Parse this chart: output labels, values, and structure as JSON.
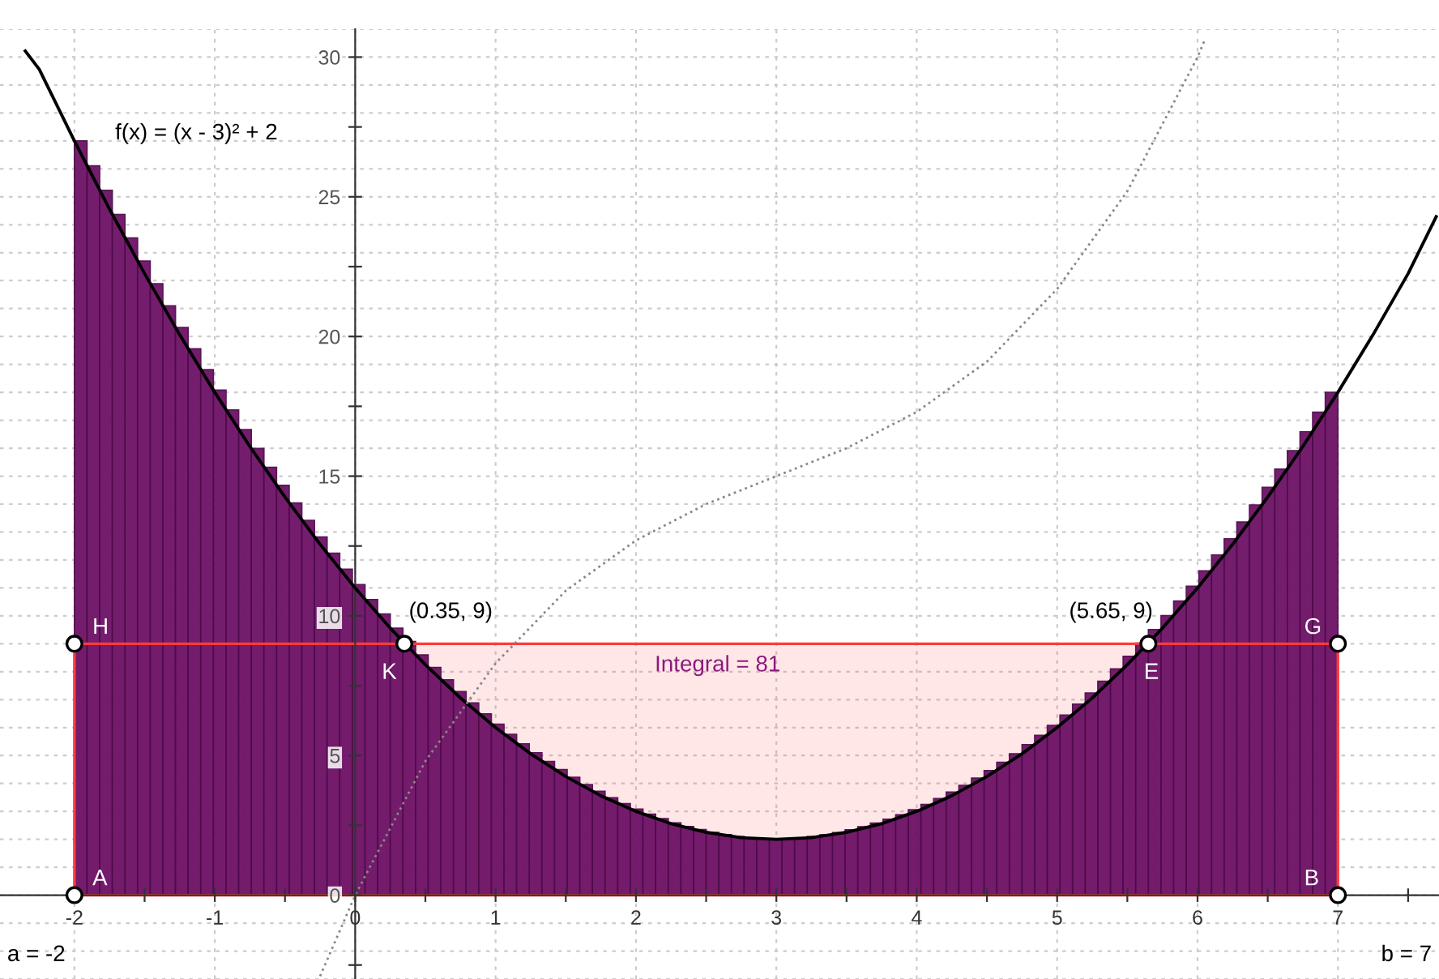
{
  "chart_data": {
    "type": "histogram",
    "bins": [
      -2,
      -1.91,
      -1.82,
      -1.73,
      -1.64,
      -1.55,
      -1.46,
      -1.37,
      -1.28,
      -1.19,
      -1.1,
      -1.01,
      -0.92,
      -0.83,
      -0.74,
      -0.65,
      -0.56,
      -0.47,
      -0.38,
      -0.29,
      -0.2,
      -0.11,
      -0.02,
      0.07,
      0.16,
      0.25,
      0.34,
      0.43,
      0.52,
      0.61,
      0.7,
      0.79,
      0.88,
      0.97,
      1.06,
      1.15,
      1.24,
      1.33,
      1.42,
      1.51,
      1.6,
      1.69,
      1.78,
      1.87,
      1.96,
      2.05,
      2.14,
      2.23,
      2.32,
      2.41,
      2.5,
      2.59,
      2.68,
      2.77,
      2.86,
      2.95,
      3.04,
      3.13,
      3.22,
      3.31,
      3.4,
      3.49,
      3.58,
      3.67,
      3.76,
      3.85,
      3.94,
      4.03,
      4.12,
      4.21,
      4.3,
      4.39,
      4.48,
      4.57,
      4.66,
      4.75,
      4.84,
      4.93,
      5.02,
      5.11,
      5.2,
      5.29,
      5.38,
      5.47,
      5.56,
      5.65,
      5.74,
      5.83,
      5.92,
      6.01,
      6.1,
      6.19,
      6.28,
      6.37,
      6.46,
      6.55,
      6.64,
      6.73,
      6.82,
      6.91,
      7
    ],
    "values": [
      27,
      26.11,
      25.23,
      24.37,
      23.53,
      22.7,
      21.89,
      21.1,
      20.32,
      19.56,
      18.81,
      18.08,
      17.37,
      16.67,
      15.99,
      15.32,
      14.67,
      14.04,
      13.42,
      12.82,
      12.24,
      11.67,
      11.12,
      10.58,
      10.07,
      9.56,
      9.08,
      8.6,
      8.15,
      7.71,
      7.29,
      6.88,
      6.49,
      6.12,
      5.76,
      5.42,
      5.1,
      4.79,
      4.5,
      4.22,
      3.96,
      3.72,
      3.49,
      3.28,
      3.08,
      2.9,
      2.74,
      2.59,
      2.46,
      2.35,
      2.25,
      2.17,
      2.1,
      2.05,
      2.02,
      2,
      2.02,
      2.05,
      2.1,
      2.16,
      2.24,
      2.34,
      2.45,
      2.58,
      2.72,
      2.88,
      3.06,
      3.25,
      3.46,
      3.69,
      3.93,
      4.19,
      4.46,
      4.76,
      5.06,
      5.39,
      5.72,
      6.08,
      6.45,
      6.84,
      7.24,
      7.66,
      8.1,
      8.55,
      9.02,
      9.51,
      10.01,
      10.53,
      11.06,
      11.61,
      12.18,
      12.76,
      13.36,
      13.97,
      14.6,
      15.25,
      15.91,
      16.59,
      17.29,
      18
    ],
    "color": "#6d1166",
    "series": [
      {
        "type": "area",
        "color": "#ff3b3b",
        "x": [
          -2,
          7
        ],
        "values": [
          9,
          9
        ]
      },
      {
        "type": "line",
        "color": "#000000",
        "x": [
          -2.35,
          -2.25,
          -2,
          -1.75,
          -1.5,
          -1.25,
          -1,
          -0.75,
          -0.5,
          -0.25,
          0,
          0.25,
          0.5,
          0.75,
          1,
          1.25,
          1.5,
          1.75,
          2,
          2.25,
          2.5,
          2.75,
          3,
          3.25,
          3.5,
          3.75,
          4,
          4.25,
          4.5,
          4.75,
          5,
          5.25,
          5.5,
          5.75,
          6,
          6.25,
          6.5,
          6.75,
          7,
          7.25,
          7.5,
          7.7
        ],
        "values": [
          30.22,
          29.56,
          27,
          24.56,
          22.25,
          20.06,
          18,
          16.06,
          14.25,
          12.56,
          11,
          9.56,
          8.25,
          7.06,
          6,
          5.06,
          4.25,
          3.56,
          3,
          2.56,
          2.25,
          2.06,
          2,
          2.06,
          2.25,
          2.56,
          3,
          3.56,
          4.25,
          5.06,
          6,
          7.06,
          8.25,
          9.56,
          11,
          12.56,
          14.25,
          16.06,
          18,
          20.06,
          22.25,
          24.29
        ]
      },
      {
        "type": "line",
        "color": "#888888",
        "line_style": "dotted",
        "x": [
          -0.25,
          0,
          0.5,
          1,
          1.5,
          2,
          2.5,
          3,
          3.5,
          4,
          4.5,
          5,
          5.5,
          6,
          6.05
        ],
        "values": [
          -2.9,
          0,
          4.8,
          8.3,
          10.9,
          12.7,
          14,
          15,
          16,
          17.3,
          19.1,
          21.7,
          25.2,
          30,
          30.6
        ]
      },
      {
        "type": "scatter",
        "color": "#000000",
        "marker": "circle",
        "x": [
          -2,
          0.35,
          5.65,
          7,
          -2,
          7
        ],
        "values": [
          9,
          9,
          9,
          9,
          0,
          0
        ]
      }
    ],
    "annotations": [
      "f(x) = (x - 3)² + 2",
      "Integral = 81",
      "a = -2",
      "b = 7",
      {
        "text": "H",
        "x": -2,
        "y": 9
      },
      {
        "text": "K",
        "x": 0.35,
        "y": 9
      },
      {
        "text": "(0.35, 9)",
        "x": 0.35,
        "y": 9
      },
      {
        "text": "E",
        "x": 5.65,
        "y": 9
      },
      {
        "text": "(5.65, 9)",
        "x": 5.65,
        "y": 9
      },
      {
        "text": "G",
        "x": 7,
        "y": 9
      },
      {
        "text": "A",
        "x": -2,
        "y": 0
      },
      {
        "text": "B",
        "x": 7,
        "y": 0
      }
    ],
    "xlim": [
      -2.53,
      7.72
    ],
    "ylim": [
      -3,
      31
    ],
    "xticks": [
      -2,
      {
        "value": -1.5,
        "label": null
      },
      -1,
      {
        "value": -0.5,
        "label": null
      },
      0,
      {
        "value": 0.5,
        "label": null
      },
      1,
      {
        "value": 1.5,
        "label": null
      },
      2,
      {
        "value": 2.5,
        "label": null
      },
      3,
      {
        "value": 3.5,
        "label": null
      },
      4,
      {
        "value": 4.5,
        "label": null
      },
      5,
      {
        "value": 5.5,
        "label": null
      },
      6,
      {
        "value": 6.5,
        "label": null
      },
      7,
      {
        "value": 7.5,
        "label": null
      }
    ],
    "yticks": [
      {
        "value": -2.5,
        "label": null
      },
      0,
      {
        "value": 2.5,
        "label": null
      },
      5,
      {
        "value": 7.5,
        "label": null
      },
      10,
      {
        "value": 12.5,
        "label": null
      },
      15,
      {
        "value": 17.5,
        "label": null
      },
      20,
      {
        "value": 22.5,
        "label": null
      },
      25,
      {
        "value": 27.5,
        "label": null
      },
      30
    ],
    "grid": true
  }
}
